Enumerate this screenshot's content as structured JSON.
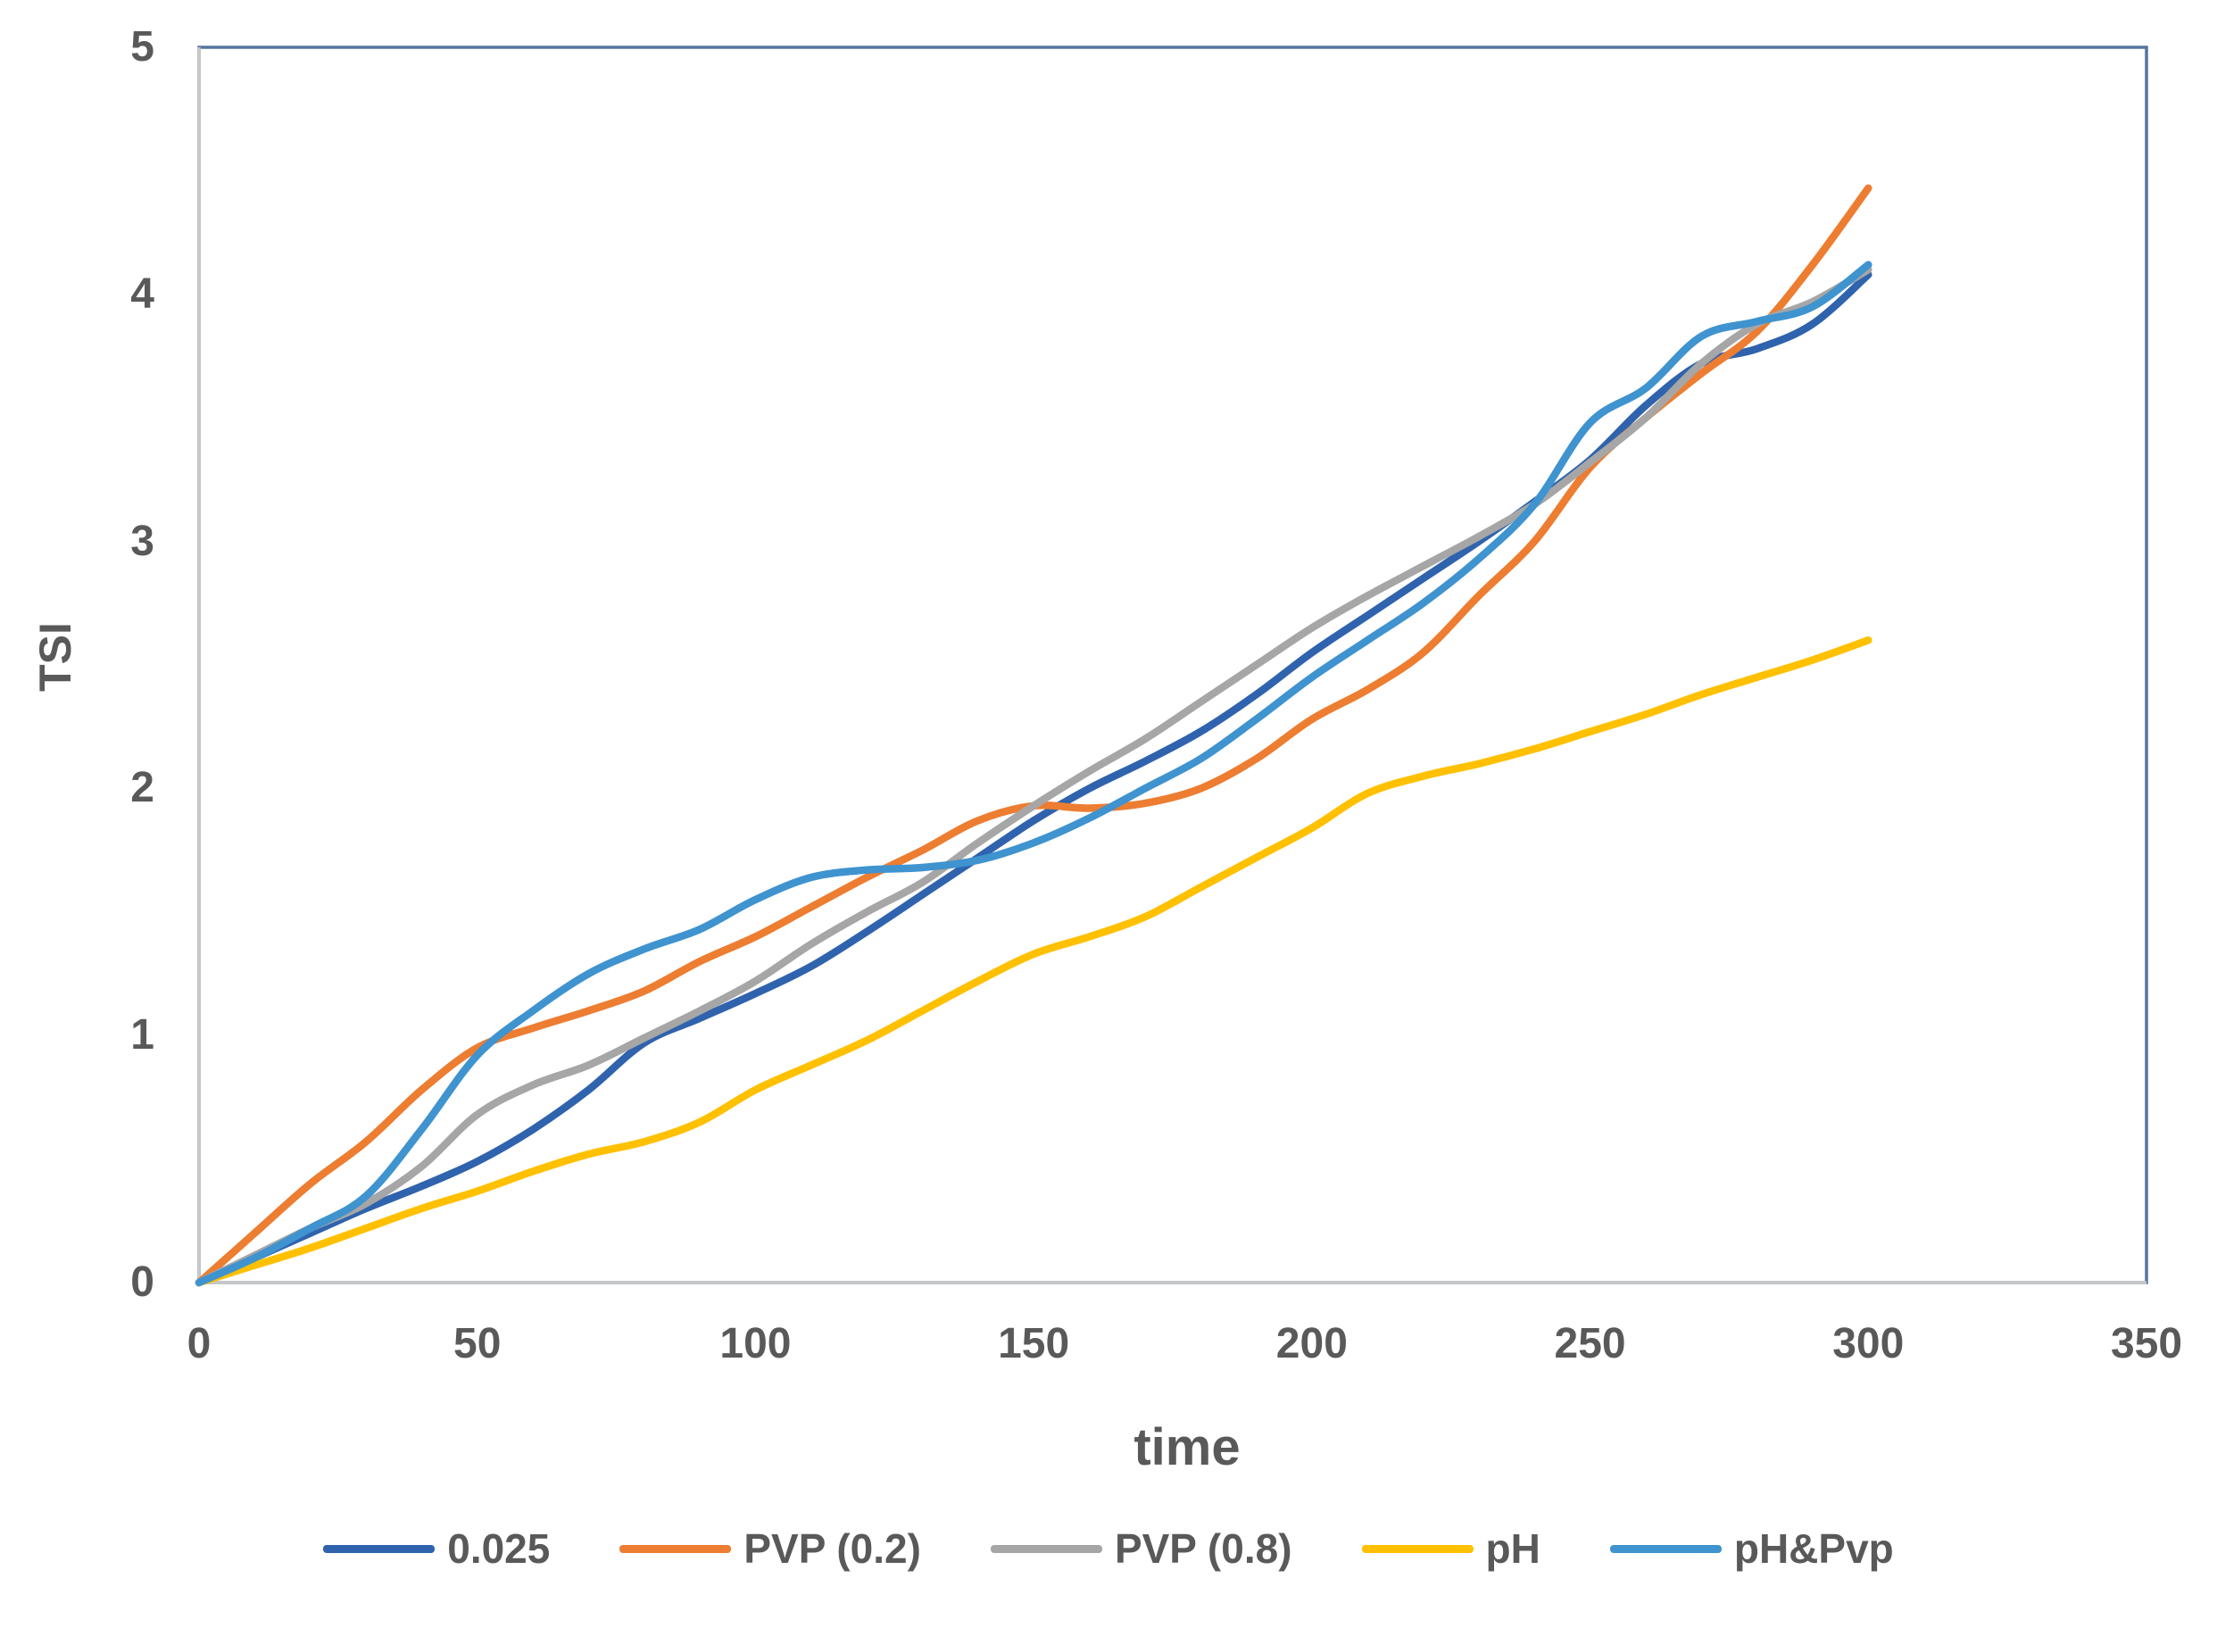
{
  "frame": {
    "background": "#FFFFFF",
    "border_color": "#56749F",
    "axis_color": "#C8C8C8",
    "text_color": "#595959"
  },
  "chart_data": {
    "type": "line",
    "title": "",
    "xlabel": "time",
    "ylabel": "TSI",
    "xlim": [
      0,
      350
    ],
    "ylim": [
      0,
      5
    ],
    "grid": false,
    "legend_position": "bottom",
    "x_ticks": [
      0,
      50,
      100,
      150,
      200,
      250,
      300,
      350
    ],
    "y_ticks": [
      0,
      1,
      2,
      3,
      4,
      5
    ],
    "x_tick_labels": [
      "0",
      "50",
      "100",
      "150",
      "200",
      "250",
      "300",
      "350"
    ],
    "y_tick_labels": [
      "0",
      "1",
      "2",
      "3",
      "4",
      "5"
    ],
    "x": [
      0,
      10,
      20,
      30,
      40,
      50,
      60,
      70,
      80,
      90,
      100,
      110,
      120,
      130,
      140,
      150,
      160,
      170,
      180,
      190,
      200,
      210,
      220,
      230,
      240,
      250,
      260,
      270,
      280,
      290,
      300
    ],
    "series": [
      {
        "name": "0.025",
        "color": "#2F63AD",
        "values": [
          0,
          0.1,
          0.2,
          0.3,
          0.39,
          0.49,
          0.62,
          0.78,
          0.97,
          1.07,
          1.17,
          1.28,
          1.42,
          1.57,
          1.72,
          1.87,
          2.0,
          2.11,
          2.23,
          2.38,
          2.55,
          2.7,
          2.85,
          3.0,
          3.16,
          3.33,
          3.55,
          3.72,
          3.78,
          3.88,
          4.08
        ]
      },
      {
        "name": "PVP (0.2)",
        "color": "#ED7D31",
        "values": [
          0,
          0.2,
          0.4,
          0.57,
          0.78,
          0.95,
          1.03,
          1.1,
          1.18,
          1.3,
          1.4,
          1.52,
          1.64,
          1.75,
          1.87,
          1.93,
          1.92,
          1.94,
          2.0,
          2.12,
          2.28,
          2.4,
          2.55,
          2.78,
          3.0,
          3.3,
          3.5,
          3.68,
          3.85,
          4.12,
          4.43
        ]
      },
      {
        "name": "PVP (0.8)",
        "color": "#A6A6A6",
        "values": [
          0,
          0.11,
          0.22,
          0.32,
          0.47,
          0.68,
          0.8,
          0.88,
          0.99,
          1.1,
          1.22,
          1.37,
          1.5,
          1.62,
          1.78,
          1.93,
          2.07,
          2.2,
          2.35,
          2.5,
          2.65,
          2.78,
          2.9,
          3.02,
          3.15,
          3.32,
          3.5,
          3.72,
          3.88,
          3.97,
          4.1
        ]
      },
      {
        "name": "pH",
        "color": "#FFC000",
        "values": [
          0,
          0.07,
          0.14,
          0.22,
          0.3,
          0.37,
          0.45,
          0.52,
          0.57,
          0.65,
          0.78,
          0.88,
          0.98,
          1.1,
          1.22,
          1.33,
          1.4,
          1.48,
          1.6,
          1.72,
          1.84,
          1.98,
          2.05,
          2.1,
          2.16,
          2.23,
          2.3,
          2.38,
          2.45,
          2.52,
          2.6
        ]
      },
      {
        "name": "pH&Pvp",
        "color": "#3F93CF",
        "values": [
          0,
          0.1,
          0.22,
          0.35,
          0.62,
          0.92,
          1.1,
          1.25,
          1.35,
          1.43,
          1.55,
          1.64,
          1.67,
          1.68,
          1.71,
          1.78,
          1.88,
          2.0,
          2.12,
          2.28,
          2.45,
          2.6,
          2.75,
          2.93,
          3.15,
          3.48,
          3.62,
          3.83,
          3.89,
          3.95,
          4.12
        ]
      }
    ]
  }
}
